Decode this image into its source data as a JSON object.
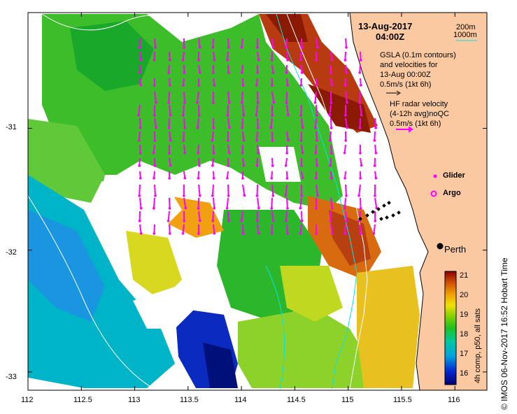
{
  "map": {
    "date": "13-Aug-2017",
    "time": "04:00Z",
    "x_ticks": [
      "112",
      "112.5",
      "113",
      "113.5",
      "114",
      "114.5",
      "115",
      "115.5",
      "116"
    ],
    "y_ticks": [
      "-31",
      "-32",
      "-33"
    ],
    "lon_range": [
      112,
      116.3
    ],
    "lat_range": [
      -33.15,
      -30.05
    ],
    "city": "Perth"
  },
  "contours_legend": {
    "label_200m": "200m",
    "label_1000m": "1000m"
  },
  "gsla": {
    "line1": "GSLA (0.1m contours)",
    "line2": "and velocities for",
    "line3": "13-Aug 00:00Z",
    "scale": "0.5m/s (1kt 6h)"
  },
  "hf_radar": {
    "line1": "HF radar velocity",
    "line2": "(4-12h avg)noQC",
    "scale": "0.5m/s (1kt 6h)"
  },
  "markers": {
    "glider": "Glider",
    "argo": "Argo"
  },
  "colorbar": {
    "ticks": [
      "21",
      "20",
      "19",
      "18",
      "17",
      "16"
    ],
    "range": [
      15.6,
      21.3
    ],
    "label": "4h comp, p50, all sats"
  },
  "credit": "© IMOS 06-Nov-2017 16:52 Hobart Time",
  "colors": {
    "land": "#fbc9a1",
    "arrow": "#ff00ff",
    "contour_200m": "#ffffff",
    "contour_1000m": "#00e5e5",
    "coast": "#000000"
  }
}
